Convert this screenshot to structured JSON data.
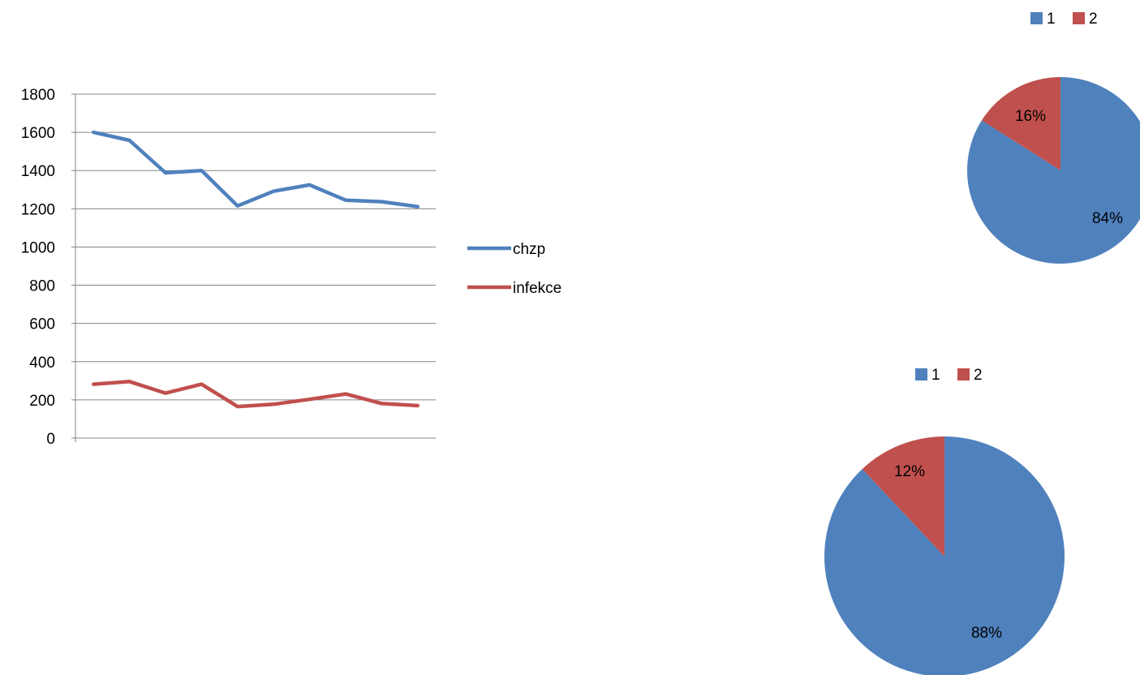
{
  "chart_data": [
    {
      "type": "line",
      "categories": [
        "",
        "",
        "",
        "",
        "",
        "",
        "",
        "",
        "",
        ""
      ],
      "ylim": [
        0,
        1800
      ],
      "y_ticks": [
        "0",
        "200",
        "400",
        "600",
        "800",
        "1000",
        "1200",
        "1400",
        "1600",
        "1800"
      ],
      "grid": "horizontal",
      "legend_position": "right",
      "series": [
        {
          "name": "chzp",
          "color": "#4f81bd",
          "values": [
            1600,
            1558,
            1388,
            1400,
            1215,
            1292,
            1325,
            1245,
            1237,
            1211
          ]
        },
        {
          "name": "infekce",
          "color": "#c0504d",
          "values": [
            282,
            296,
            235,
            282,
            165,
            177,
            203,
            231,
            181,
            170
          ]
        }
      ]
    },
    {
      "type": "pie",
      "legend_position": "top",
      "slices": [
        {
          "label": "1",
          "value": 84,
          "data_label": "84%",
          "color": "#4f81bd"
        },
        {
          "label": "2",
          "value": 16,
          "data_label": "16%",
          "color": "#c0504d"
        }
      ]
    },
    {
      "type": "pie",
      "legend_position": "top",
      "slices": [
        {
          "label": "1",
          "value": 88,
          "data_label": "88%",
          "color": "#4f81bd"
        },
        {
          "label": "2",
          "value": 12,
          "data_label": "12%",
          "color": "#c0504d"
        }
      ]
    }
  ]
}
